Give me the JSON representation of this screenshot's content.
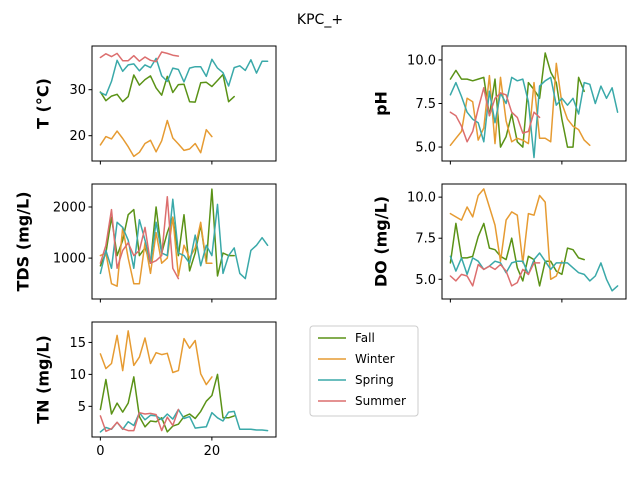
{
  "figure": {
    "title": "KPC_+"
  },
  "colors": {
    "Fall": "#5a9216",
    "Winter": "#e69b32",
    "Spring": "#3aa9a9",
    "Summer": "#dc6e6e"
  },
  "legend": {
    "placement": "center-right-of-bottom-left-panel",
    "entries": [
      "Fall",
      "Winter",
      "Spring",
      "Summer"
    ]
  },
  "chart_data": [
    {
      "type": "line",
      "id": "T",
      "ylabel": "T  (°C)",
      "xlim": [
        -1.5,
        31.5
      ],
      "ylim": [
        14.5,
        39.5
      ],
      "yticks": [
        20,
        30
      ],
      "xticks": [
        0,
        20
      ],
      "show_xticklabels": false,
      "series": [
        {
          "name": "Fall",
          "x": [
            0,
            1,
            2,
            3,
            4,
            5,
            6,
            7,
            8,
            9,
            10,
            11,
            12,
            13,
            14,
            15,
            16,
            17,
            18,
            19,
            20,
            21,
            22,
            23,
            24
          ],
          "values": [
            29.5,
            27.6,
            28.6,
            29.0,
            27.4,
            28.5,
            33.2,
            31.0,
            32.2,
            33.0,
            30.4,
            28.8,
            32.9,
            29.4,
            31.1,
            31.2,
            27.4,
            27.3,
            31.5,
            31.6,
            30.7,
            32.0,
            33.3,
            27.4,
            28.5
          ]
        },
        {
          "name": "Winter",
          "x": [
            0,
            1,
            2,
            3,
            4,
            5,
            6,
            7,
            8,
            9,
            10,
            11,
            12,
            13,
            14,
            15,
            16,
            17,
            18,
            19,
            20
          ],
          "values": [
            18.0,
            19.8,
            19.3,
            21.0,
            19.4,
            17.6,
            15.5,
            16.4,
            18.3,
            19.0,
            16.5,
            18.9,
            23.3,
            19.5,
            18.2,
            16.8,
            17.1,
            18.3,
            16.3,
            21.3,
            19.8
          ]
        },
        {
          "name": "Spring",
          "x": [
            0,
            1,
            2,
            3,
            4,
            5,
            6,
            7,
            8,
            9,
            10,
            11,
            12,
            13,
            14,
            15,
            16,
            17,
            18,
            19,
            20,
            21,
            22,
            23,
            24,
            25,
            26,
            27,
            28,
            29,
            30
          ],
          "values": [
            29.4,
            28.8,
            31.8,
            36.4,
            34.0,
            35.4,
            35.6,
            34.1,
            35.4,
            34.8,
            36.8,
            33.0,
            31.8,
            34.7,
            34.4,
            31.7,
            34.7,
            35.0,
            35.0,
            32.9,
            36.6,
            34.7,
            33.7,
            30.8,
            34.8,
            35.2,
            34.2,
            36.5,
            33.6,
            36.2,
            36.2
          ]
        },
        {
          "name": "Summer",
          "x": [
            0,
            1,
            2,
            3,
            4,
            5,
            6,
            7,
            8,
            9,
            10,
            11,
            12,
            13,
            14
          ],
          "values": [
            37.0,
            37.8,
            37.2,
            37.9,
            36.3,
            36.3,
            37.4,
            36.2,
            37.1,
            36.4,
            36.1,
            38.2,
            37.9,
            37.5,
            37.3
          ]
        }
      ]
    },
    {
      "type": "line",
      "id": "pH",
      "ylabel": "pH",
      "xlim": [
        -1.5,
        31.5
      ],
      "ylim": [
        4.2,
        10.8
      ],
      "yticks": [
        5.0,
        7.5,
        10.0
      ],
      "ytick_labels": [
        "5.0",
        "7.5",
        "10.0"
      ],
      "xticks": [
        0,
        20
      ],
      "show_xticklabels": false,
      "series": [
        {
          "name": "Fall",
          "x": [
            0,
            1,
            2,
            3,
            4,
            5,
            6,
            7,
            8,
            9,
            10,
            11,
            12,
            13,
            14,
            15,
            16,
            17,
            18,
            19,
            20,
            21,
            22,
            23,
            24
          ],
          "values": [
            8.9,
            9.4,
            8.9,
            8.9,
            8.8,
            8.9,
            9.0,
            6.8,
            8.9,
            5.0,
            5.6,
            6.9,
            5.3,
            5.0,
            8.7,
            8.3,
            7.8,
            10.4,
            9.3,
            8.7,
            6.6,
            5.0,
            5.0,
            9.0,
            8.2
          ]
        },
        {
          "name": "Winter",
          "x": [
            0,
            1,
            2,
            3,
            4,
            5,
            6,
            7,
            8,
            9,
            10,
            11,
            12,
            13,
            14,
            15,
            16,
            17,
            18,
            19,
            20,
            21,
            22,
            23,
            24,
            25
          ],
          "values": [
            5.1,
            5.5,
            5.9,
            7.8,
            7.6,
            5.4,
            6.1,
            9.1,
            5.2,
            9.0,
            6.5,
            5.3,
            5.5,
            5.4,
            5.2,
            8.7,
            5.5,
            5.5,
            5.3,
            9.8,
            7.5,
            6.6,
            6.2,
            6.0,
            5.4,
            5.1
          ]
        },
        {
          "name": "Spring",
          "x": [
            0,
            1,
            2,
            3,
            4,
            5,
            6,
            7,
            8,
            9,
            10,
            11,
            12,
            13,
            14,
            15,
            16,
            17,
            18,
            19,
            20,
            21,
            22,
            23,
            24,
            25,
            26,
            27,
            28,
            29,
            30
          ],
          "values": [
            8.0,
            8.7,
            7.9,
            7.0,
            6.6,
            6.4,
            5.3,
            8.2,
            6.4,
            8.1,
            7.5,
            9.0,
            8.8,
            8.9,
            7.6,
            4.4,
            8.5,
            8.8,
            9.0,
            7.4,
            7.8,
            7.4,
            7.8,
            6.9,
            8.7,
            8.6,
            7.5,
            8.5,
            7.8,
            8.4,
            7.0
          ]
        },
        {
          "name": "Summer",
          "x": [
            0,
            1,
            2,
            3,
            4,
            5,
            6,
            7,
            8,
            9,
            10,
            11,
            12,
            13,
            14,
            15,
            16
          ],
          "values": [
            7.0,
            6.8,
            6.2,
            5.3,
            5.9,
            7.2,
            8.4,
            6.8,
            7.8,
            8.1,
            8.0,
            7.0,
            6.7,
            5.8,
            5.9,
            7.0,
            6.7
          ]
        }
      ]
    },
    {
      "type": "line",
      "id": "TDS",
      "ylabel": "TDS (mg/L)",
      "xlim": [
        -1.5,
        31.5
      ],
      "ylim": [
        200,
        2450
      ],
      "yticks": [
        1000,
        2000
      ],
      "xticks": [
        0,
        20
      ],
      "show_xticklabels": false,
      "series": [
        {
          "name": "Fall",
          "x": [
            0,
            1,
            2,
            3,
            4,
            5,
            6,
            7,
            8,
            9,
            10,
            11,
            12,
            13,
            14,
            15,
            16,
            17,
            18,
            19,
            20,
            21,
            22,
            23,
            24
          ],
          "values": [
            850,
            1100,
            1800,
            1050,
            1350,
            1850,
            1950,
            1050,
            1200,
            900,
            2000,
            1100,
            1500,
            1800,
            1050,
            1850,
            750,
            1100,
            1650,
            900,
            2350,
            650,
            1100,
            1050,
            1050
          ]
        },
        {
          "name": "Winter",
          "x": [
            0,
            1,
            2,
            3,
            4,
            5,
            6,
            7,
            8,
            9,
            10,
            11,
            12,
            13,
            14,
            15,
            16,
            17,
            18,
            19,
            20
          ],
          "values": [
            1050,
            1100,
            500,
            450,
            1600,
            1000,
            500,
            500,
            1300,
            700,
            1500,
            900,
            1000,
            1800,
            650,
            1250,
            1000,
            1200,
            1700,
            900,
            900
          ]
        },
        {
          "name": "Spring",
          "x": [
            0,
            1,
            2,
            3,
            4,
            5,
            6,
            7,
            8,
            9,
            10,
            11,
            12,
            13,
            14,
            15,
            16,
            17,
            18,
            19,
            20,
            21,
            22,
            23,
            24,
            25,
            26,
            27,
            28,
            29,
            30
          ],
          "values": [
            700,
            1150,
            800,
            1700,
            1600,
            1350,
            800,
            1750,
            1350,
            900,
            1700,
            1100,
            1050,
            2150,
            1100,
            1050,
            900,
            1450,
            850,
            1250,
            1050,
            2050,
            700,
            1050,
            1200,
            700,
            600,
            1150,
            1250,
            1400,
            1250
          ]
        },
        {
          "name": "Summer",
          "x": [
            0,
            1,
            2,
            3,
            4,
            5,
            6,
            7,
            8,
            9,
            10,
            11,
            12,
            13,
            14
          ],
          "values": [
            900,
            1250,
            1950,
            800,
            1150,
            1300,
            1050,
            1150,
            1600,
            900,
            950,
            1050,
            2200,
            800,
            600
          ]
        }
      ]
    },
    {
      "type": "line",
      "id": "DO",
      "ylabel": "DO (mg/L)",
      "xlim": [
        -1.5,
        31.5
      ],
      "ylim": [
        3.8,
        10.8
      ],
      "yticks": [
        5.0,
        7.5,
        10.0
      ],
      "ytick_labels": [
        "5.0",
        "7.5",
        "10.0"
      ],
      "xticks": [
        0,
        20
      ],
      "show_xticklabels": false,
      "series": [
        {
          "name": "Fall",
          "x": [
            0,
            1,
            2,
            3,
            4,
            5,
            6,
            7,
            8,
            9,
            10,
            11,
            12,
            13,
            14,
            15,
            16,
            17,
            18,
            19,
            20,
            21,
            22,
            23,
            24
          ],
          "values": [
            6.0,
            8.4,
            6.3,
            6.3,
            6.4,
            7.6,
            8.4,
            6.9,
            6.8,
            6.4,
            6.2,
            7.5,
            5.7,
            4.9,
            6.4,
            6.2,
            4.6,
            6.1,
            6.1,
            5.5,
            5.3,
            6.9,
            6.8,
            6.3,
            6.2
          ]
        },
        {
          "name": "Winter",
          "x": [
            0,
            1,
            2,
            3,
            4,
            5,
            6,
            7,
            8,
            9,
            10,
            11,
            12,
            13,
            14,
            15,
            16,
            17,
            18,
            19,
            20
          ],
          "values": [
            9.0,
            8.8,
            8.6,
            9.4,
            8.8,
            10.1,
            10.5,
            9.4,
            8.3,
            6.1,
            8.6,
            9.1,
            8.9,
            6.0,
            9.0,
            8.9,
            10.1,
            9.7,
            5.0,
            5.2,
            6.1
          ]
        },
        {
          "name": "Spring",
          "x": [
            0,
            1,
            2,
            3,
            4,
            5,
            6,
            7,
            8,
            9,
            10,
            11,
            12,
            13,
            14,
            15,
            16,
            17,
            18,
            19,
            20,
            21,
            22,
            23,
            24,
            25,
            26,
            27,
            28,
            29,
            30
          ],
          "values": [
            6.4,
            5.5,
            6.3,
            5.3,
            6.3,
            6.1,
            5.6,
            5.8,
            6.1,
            6.0,
            5.4,
            6.0,
            6.1,
            6.1,
            5.3,
            6.2,
            6.6,
            6.1,
            5.6,
            6.0,
            6.0,
            6.0,
            5.7,
            5.4,
            5.3,
            4.9,
            5.2,
            6.0,
            5.0,
            4.3,
            4.6
          ]
        },
        {
          "name": "Summer",
          "x": [
            0,
            1,
            2,
            3,
            4,
            5,
            6,
            7,
            8,
            9,
            10,
            11,
            12,
            13,
            14,
            15,
            16
          ],
          "values": [
            5.2,
            4.9,
            5.3,
            5.2,
            4.6,
            5.9,
            5.6,
            5.8,
            5.6,
            5.9,
            5.5,
            4.6,
            4.8,
            5.6,
            5.3,
            6.0,
            6.0
          ]
        }
      ]
    },
    {
      "type": "line",
      "id": "TN",
      "ylabel": "TN (mg/L)",
      "xlim": [
        -1.5,
        31.5
      ],
      "ylim": [
        0.2,
        18.2
      ],
      "yticks": [
        5,
        10,
        15
      ],
      "xticks": [
        0,
        20
      ],
      "show_xticklabels": true,
      "series": [
        {
          "name": "Fall",
          "x": [
            0,
            1,
            2,
            3,
            4,
            5,
            6,
            7,
            8,
            9,
            10,
            11,
            12,
            13,
            14,
            15,
            16,
            17,
            18,
            19,
            20,
            21,
            22,
            23,
            24
          ],
          "values": [
            4.5,
            9.2,
            3.8,
            5.5,
            4.1,
            5.5,
            9.6,
            3.4,
            1.8,
            2.7,
            2.6,
            3.2,
            1.0,
            1.9,
            2.2,
            3.4,
            3.8,
            3.1,
            4.2,
            5.8,
            6.7,
            10.0,
            3.2,
            3.2,
            3.5
          ]
        },
        {
          "name": "Winter",
          "x": [
            0,
            1,
            2,
            3,
            4,
            5,
            6,
            7,
            8,
            9,
            10,
            11,
            12,
            13,
            14,
            15,
            16,
            17,
            18,
            19,
            20
          ],
          "values": [
            13.2,
            10.9,
            11.7,
            16.1,
            10.6,
            16.8,
            11.4,
            12.7,
            15.7,
            11.7,
            13.4,
            13.1,
            13.3,
            10.3,
            10.6,
            15.6,
            14.1,
            15.3,
            10.1,
            8.4,
            9.6
          ]
        },
        {
          "name": "Spring",
          "x": [
            0,
            1,
            2,
            3,
            4,
            5,
            6,
            7,
            8,
            9,
            10,
            11,
            12,
            13,
            14,
            15,
            16,
            17,
            18,
            19,
            20,
            21,
            22,
            23,
            24,
            25,
            26,
            27,
            28,
            29,
            30
          ],
          "values": [
            1.0,
            1.7,
            1.4,
            2.5,
            1.4,
            2.6,
            2.0,
            4.0,
            2.9,
            3.6,
            3.5,
            2.9,
            3.8,
            3.0,
            4.5,
            3.1,
            3.4,
            1.6,
            1.7,
            1.8,
            4.0,
            3.2,
            2.7,
            4.1,
            4.2,
            1.4,
            1.4,
            1.4,
            1.3,
            1.3,
            1.2
          ]
        },
        {
          "name": "Summer",
          "x": [
            0,
            1,
            2,
            3,
            4,
            5,
            6,
            7,
            8,
            9,
            10,
            11,
            12,
            13,
            14
          ],
          "values": [
            3.5,
            1.1,
            1.5,
            2.5,
            1.5,
            1.2,
            1.2,
            4.0,
            3.8,
            3.9,
            3.7,
            1.2,
            3.3,
            2.0,
            4.5
          ]
        }
      ]
    }
  ]
}
